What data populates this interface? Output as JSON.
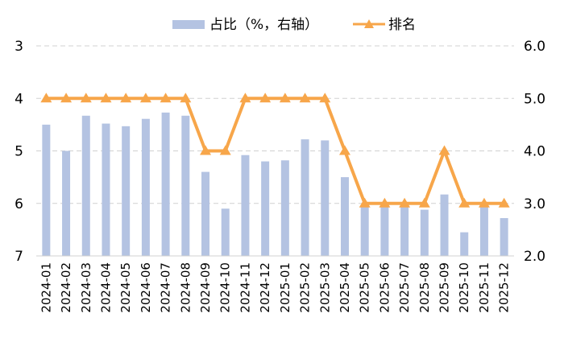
{
  "chart_data": {
    "type": "bar+line",
    "categories": [
      "2024-01",
      "2024-02",
      "2024-03",
      "2024-04",
      "2024-05",
      "2024-06",
      "2024-07",
      "2024-08",
      "2024-09",
      "2024-10",
      "2024-11",
      "2024-12",
      "2025-01",
      "2025-02",
      "2025-03",
      "2025-04",
      "2025-05",
      "2025-06",
      "2025-07",
      "2025-08",
      "2025-09",
      "2025-10",
      "2025-11",
      "2025-12"
    ],
    "series": [
      {
        "name": "占比（%，右轴）",
        "type": "bar",
        "axis": "right",
        "color": "#b4c3e2",
        "values": [
          4.5,
          4.0,
          4.67,
          4.52,
          4.47,
          4.61,
          4.73,
          4.67,
          3.6,
          2.9,
          3.92,
          3.8,
          3.82,
          4.22,
          4.2,
          3.5,
          2.93,
          2.96,
          2.98,
          2.88,
          3.17,
          2.45,
          2.98,
          2.72
        ]
      },
      {
        "name": "排名",
        "type": "line",
        "axis": "left",
        "color": "#f7a64a",
        "values": [
          4,
          4,
          4,
          4,
          4,
          4,
          4,
          4,
          5,
          5,
          4,
          4,
          4,
          4,
          4,
          5,
          6,
          6,
          6,
          6,
          5,
          6,
          6,
          6
        ]
      }
    ],
    "left_axis": {
      "min": 3,
      "max": 7,
      "inverted": true,
      "ticks": [
        "3",
        "4",
        "5",
        "6",
        "7"
      ]
    },
    "right_axis": {
      "min": 2.0,
      "max": 6.0,
      "ticks": [
        "2.0",
        "3.0",
        "4.0",
        "5.0",
        "6.0"
      ]
    },
    "grid": "horizontal dashed",
    "legend_position": "top-center"
  }
}
